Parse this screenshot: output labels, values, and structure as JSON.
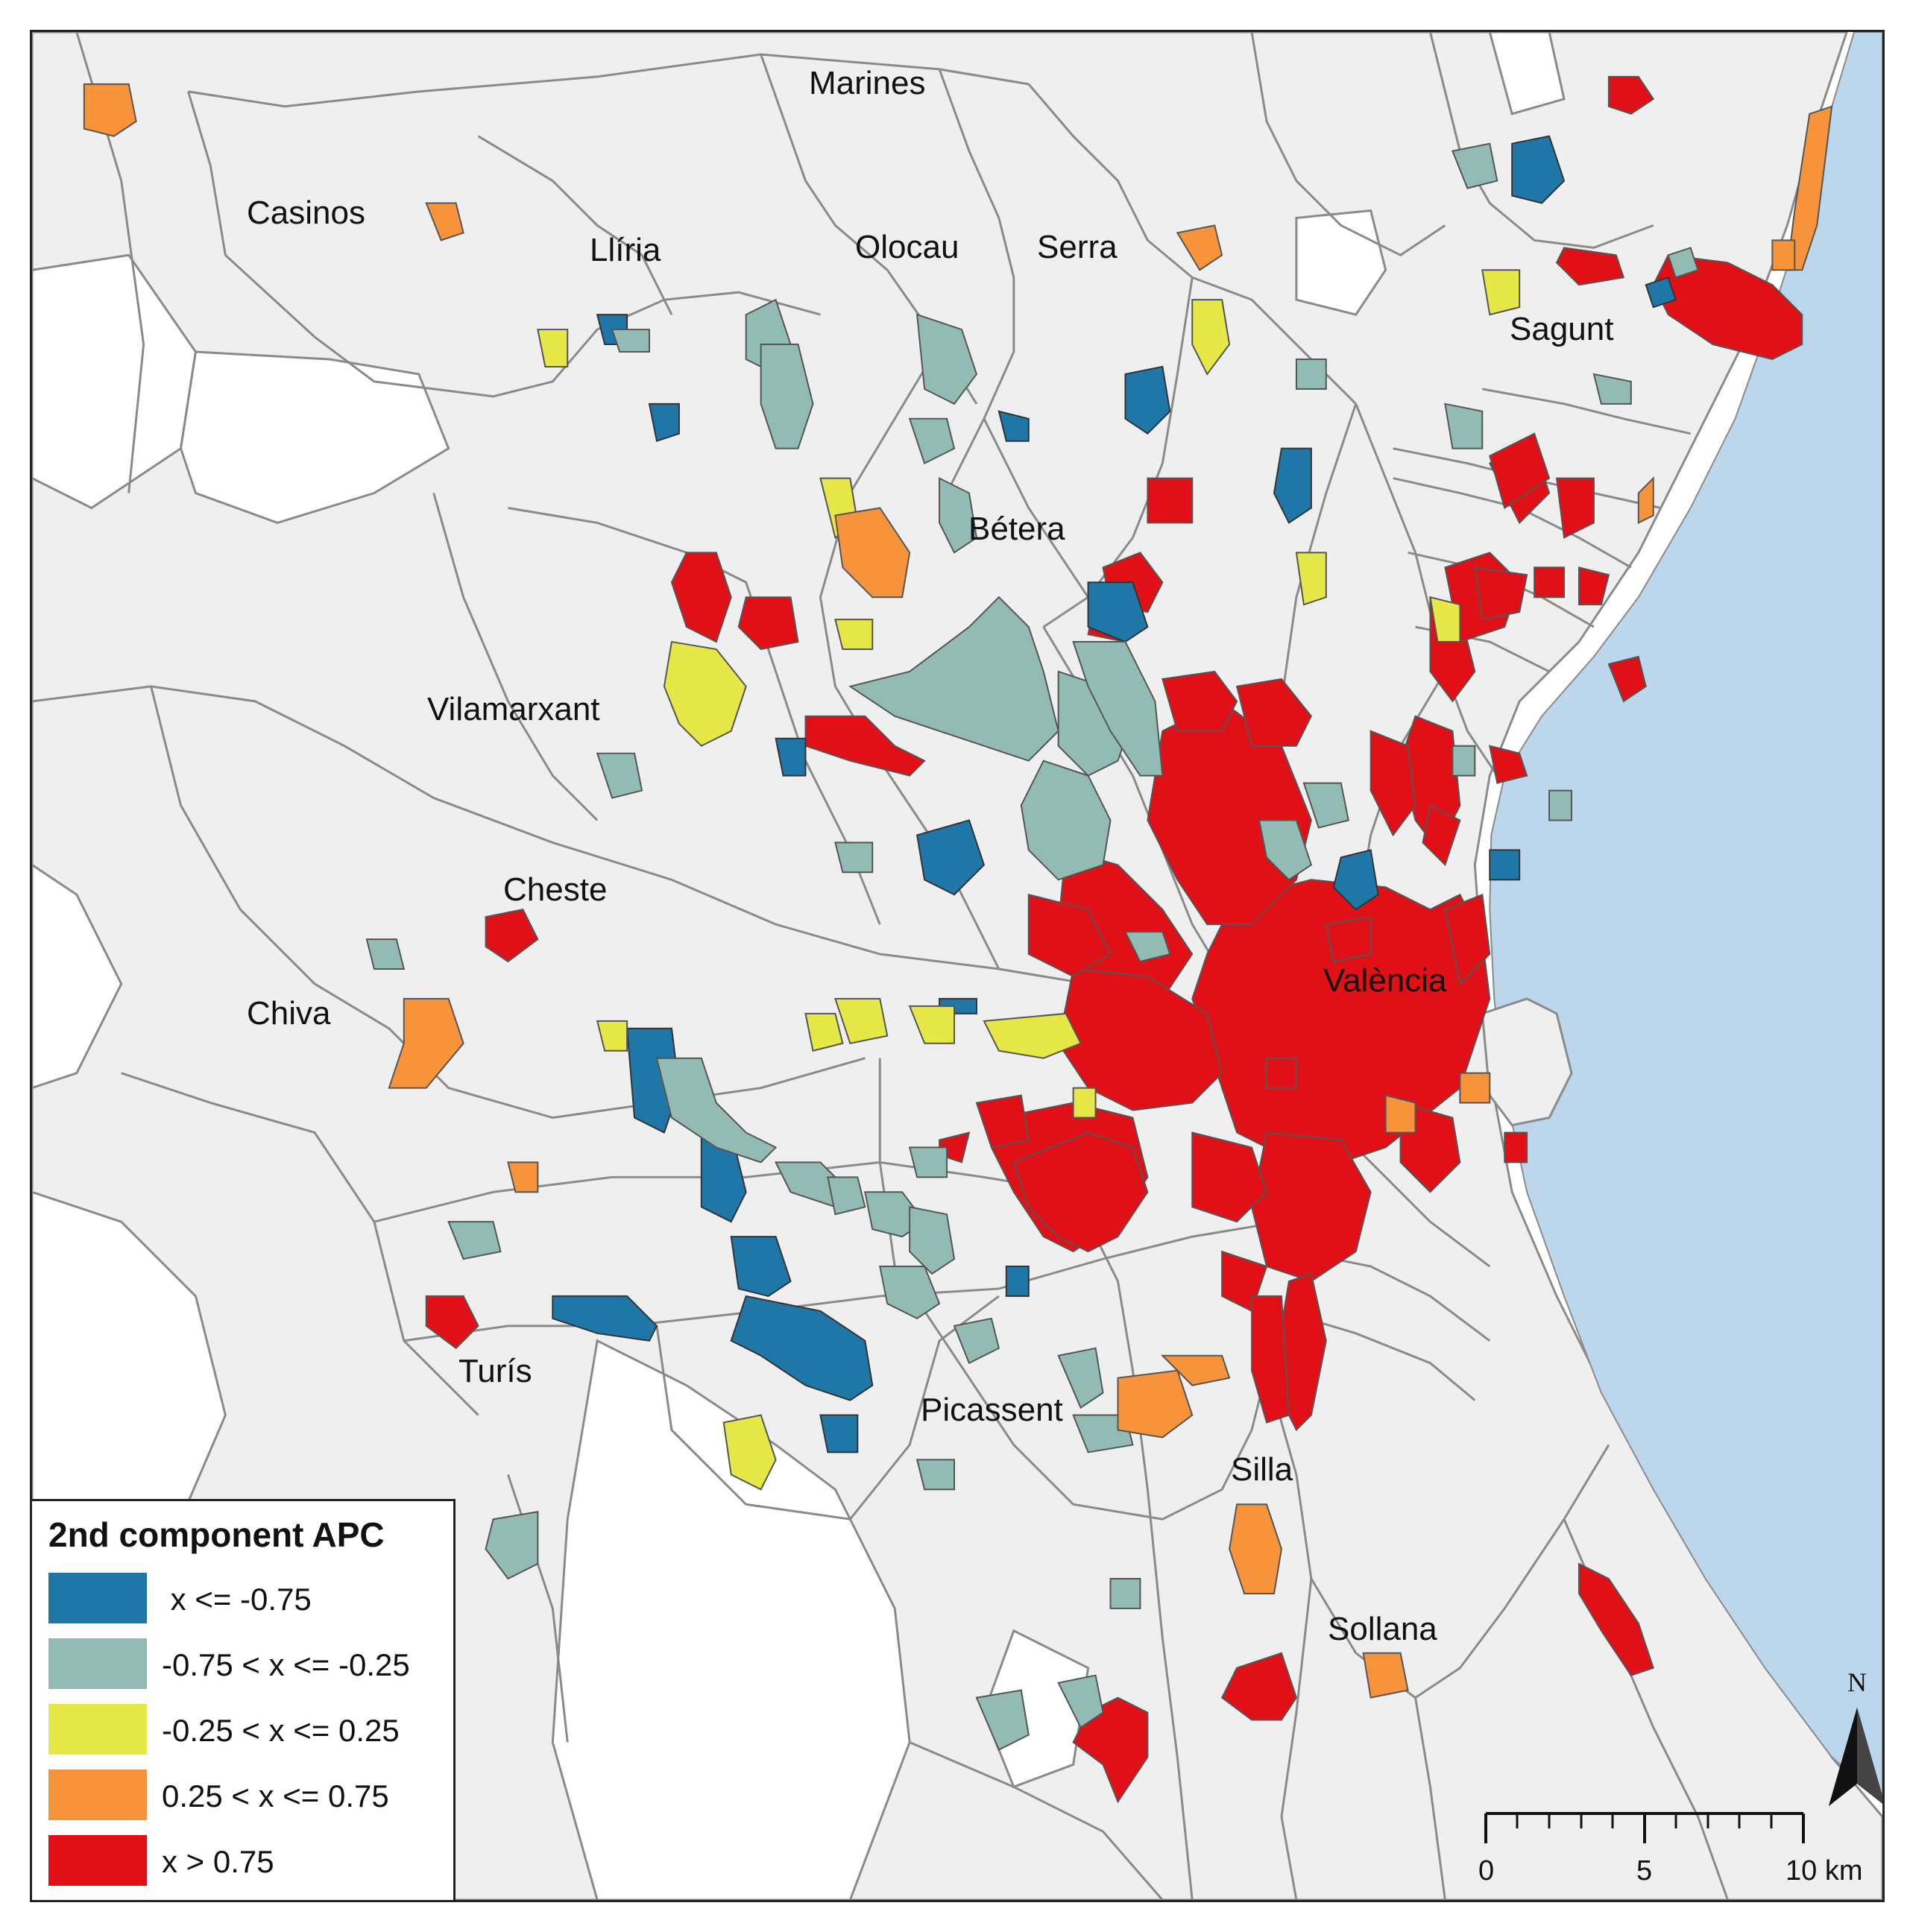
{
  "map": {
    "colors": {
      "land": "#efefef",
      "boundary": "#8a8a8a",
      "sea": "#bcd6ec",
      "class_1": "#1f77a8",
      "class_2": "#92bcb3",
      "class_3": "#e5e846",
      "class_4": "#f7933a",
      "class_5": "#e01016"
    },
    "places": [
      "Marines",
      "Casinos",
      "Llíria",
      "Olocau",
      "Serra",
      "Sagunt",
      "Bétera",
      "Vilamarxant",
      "Cheste",
      "València",
      "Chiva",
      "Picassent",
      "Turís",
      "Silla",
      "Sollana"
    ]
  },
  "legend": {
    "title": "2nd component APC",
    "items": [
      {
        "label": " x <= -0.75",
        "color": "#1f77a8"
      },
      {
        "label": "-0.75 < x <= -0.25",
        "color": "#92bcb3"
      },
      {
        "label": "-0.25 < x <= 0.25",
        "color": "#e5e846"
      },
      {
        "label": "0.25 < x <= 0.75",
        "color": "#f7933a"
      },
      {
        "label": "x > 0.75",
        "color": "#e01016"
      }
    ]
  },
  "north_arrow": {
    "label": "N"
  },
  "scale_bar": {
    "ticks": [
      "0",
      "5",
      "10 km"
    ]
  }
}
